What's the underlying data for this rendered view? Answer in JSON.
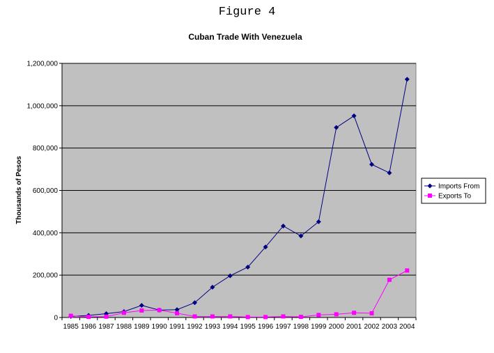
{
  "figure_label": "Figure 4",
  "chart_data": {
    "type": "line",
    "title": "Cuban Trade With Venezuela",
    "xlabel": "",
    "ylabel": "Thousands of Pesos",
    "categories": [
      "1985",
      "1986",
      "1987",
      "1988",
      "1989",
      "1990",
      "1991",
      "1992",
      "1993",
      "1994",
      "1995",
      "1996",
      "1997",
      "1998",
      "1999",
      "2000",
      "2001",
      "2002",
      "2003",
      "2004"
    ],
    "ylim": [
      0,
      1200000
    ],
    "yticks": [
      0,
      200000,
      400000,
      600000,
      800000,
      1000000,
      1200000
    ],
    "ytick_labels": [
      "0",
      "200,000",
      "400,000",
      "600,000",
      "800,000",
      "1,000,000",
      "1,200,000"
    ],
    "grid": "horizontal",
    "legend_position": "right",
    "plot_background": "#c0c0c0",
    "series": [
      {
        "name": "Imports From",
        "color": "#000080",
        "marker": "diamond",
        "values": [
          5000,
          10000,
          18000,
          28000,
          57000,
          35000,
          37000,
          70000,
          143000,
          197000,
          238000,
          333000,
          432000,
          385000,
          452000,
          897000,
          952000,
          723000,
          683000,
          1125000
        ]
      },
      {
        "name": "Exports To",
        "color": "#ff00ff",
        "marker": "square",
        "values": [
          8000,
          3000,
          4000,
          22000,
          33000,
          35000,
          20000,
          5000,
          5000,
          5000,
          2000,
          2000,
          5000,
          3000,
          12000,
          15000,
          22000,
          20000,
          178000,
          222000
        ]
      }
    ]
  }
}
